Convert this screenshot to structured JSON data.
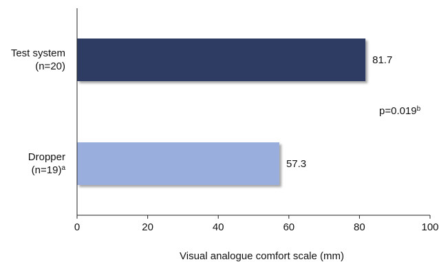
{
  "chart_data": {
    "type": "bar",
    "orientation": "horizontal",
    "categories": [
      {
        "line1": "Test system",
        "line2": "(n=20)",
        "line2_sup": ""
      },
      {
        "line1": "Dropper",
        "line2": "(n=19)",
        "line2_sup": "a"
      }
    ],
    "values": [
      81.7,
      57.3
    ],
    "value_labels": [
      "81.7",
      "57.3"
    ],
    "colors": [
      "#2e3b63",
      "#9aaedd"
    ],
    "xlabel": "Visual analogue comfort scale (mm)",
    "xlim": [
      0,
      100
    ],
    "xticks": [
      0,
      20,
      40,
      60,
      80,
      100
    ],
    "grid": false,
    "annotations": [
      {
        "text": "p=0.019",
        "sup": "b"
      }
    ]
  }
}
